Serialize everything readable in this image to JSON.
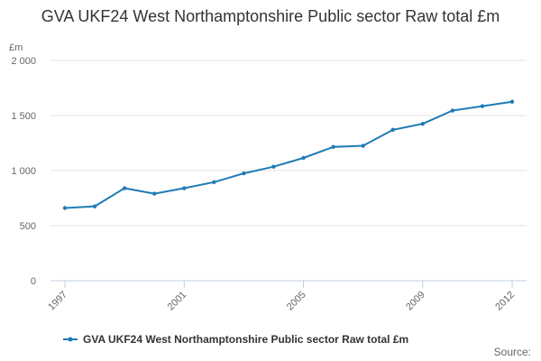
{
  "title": "GVA UKF24 West Northamptonshire Public sector Raw total £m",
  "source_label": "Source:",
  "colors": {
    "series": "#1f7bb6",
    "grid": "#e6e6e6",
    "axis": "#c0d0e0",
    "text": "#666666"
  },
  "chart_data": {
    "type": "line",
    "title": "GVA UKF24 West Northamptonshire Public sector Raw total £m",
    "ylabel": "£m",
    "xlabel": "",
    "ylim": [
      0,
      2000
    ],
    "yticks": [
      0,
      500,
      1000,
      1500,
      2000
    ],
    "ytick_labels": [
      "0",
      "500",
      "1 000",
      "1 500",
      "2 000"
    ],
    "xlim": [
      1997,
      2012
    ],
    "xticks": [
      1997,
      2001,
      2005,
      2009,
      2012
    ],
    "xtick_labels": [
      "1997",
      "2001",
      "2005",
      "2009",
      "2012"
    ],
    "grid": true,
    "legend": "bottom",
    "x": [
      1997,
      1998,
      1999,
      2000,
      2001,
      2002,
      2003,
      2004,
      2005,
      2006,
      2007,
      2008,
      2009,
      2010,
      2011,
      2012
    ],
    "series": [
      {
        "name": "GVA UKF24 West Northamptonshire Public sector Raw total £m",
        "values": [
          660,
          675,
          840,
          790,
          840,
          895,
          975,
          1035,
          1115,
          1215,
          1225,
          1370,
          1425,
          1545,
          1585,
          1625
        ]
      }
    ]
  }
}
